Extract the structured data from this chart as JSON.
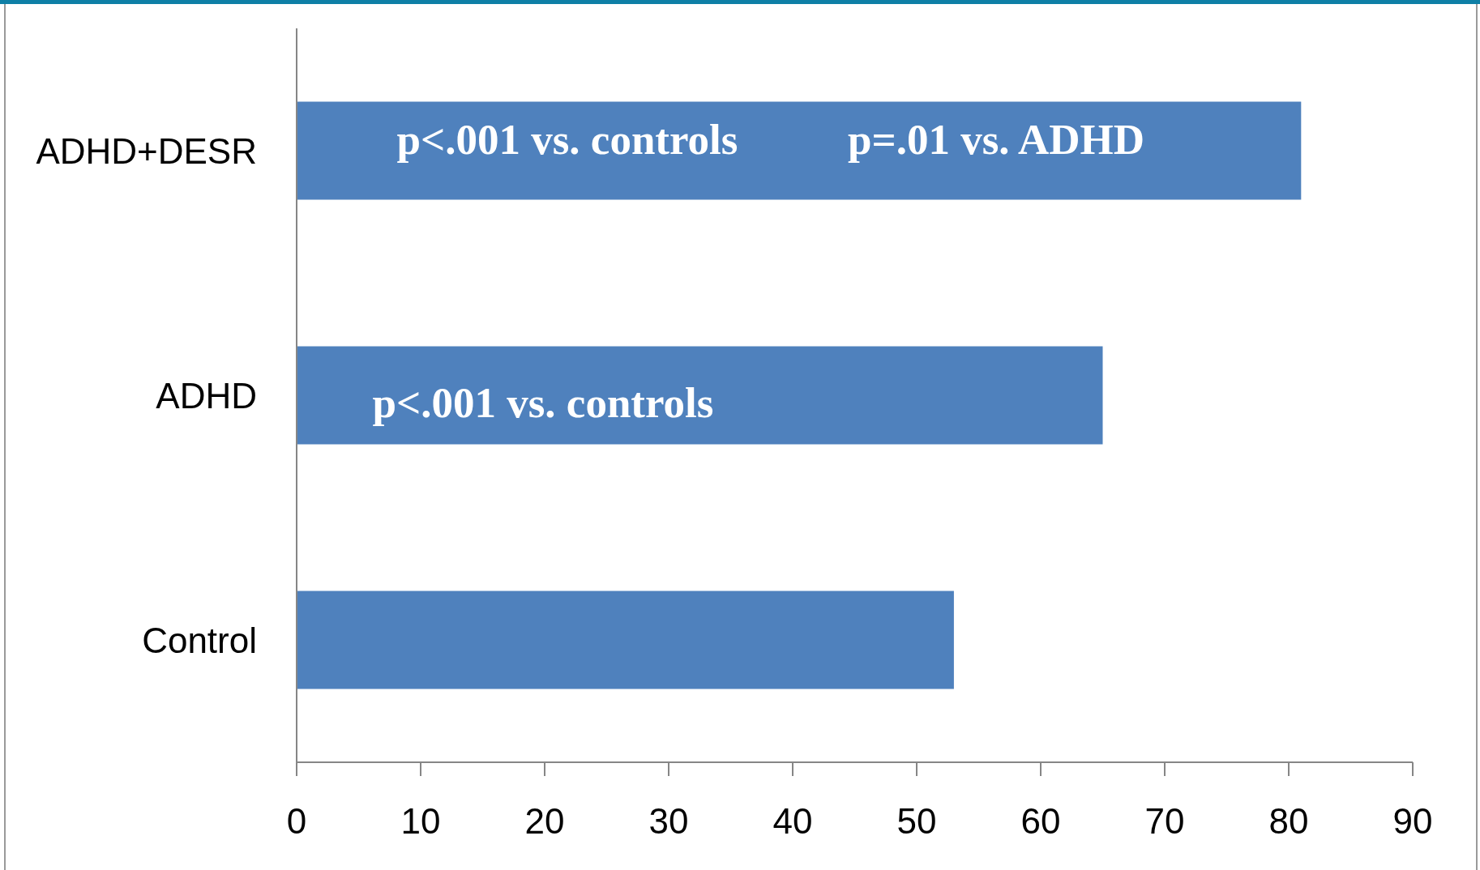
{
  "chart_data": {
    "type": "bar",
    "orientation": "horizontal",
    "categories": [
      "ADHD+DESR",
      "ADHD",
      "Control"
    ],
    "values": [
      81,
      65,
      53
    ],
    "color": "#4f81bd",
    "xlim": [
      0,
      90
    ],
    "xticks": [
      0,
      10,
      20,
      30,
      40,
      50,
      60,
      70,
      80,
      90
    ],
    "annotations": [
      "p<.001 vs. controls",
      "p=.01 vs. ADHD",
      "p<.001 vs. controls"
    ]
  }
}
